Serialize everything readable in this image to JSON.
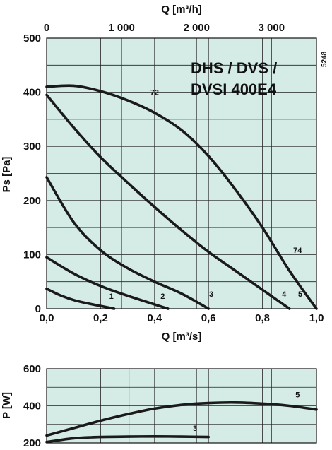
{
  "chart_data": [
    {
      "type": "line",
      "title": "DHS / DVS / DVSI 400E4",
      "title_lines": [
        "DHS / DVS /",
        "DVSI 400E4"
      ],
      "code": "5248",
      "xlabel": "Q [m³/s]",
      "ylabel": "Ps [Pa]",
      "top_axis_label": "Q [m³/h]",
      "xlim": [
        0,
        1.0
      ],
      "ylim": [
        0,
        500
      ],
      "top_axis_lim": [
        0,
        3600
      ],
      "xticks": [
        0,
        0.2,
        0.4,
        0.6,
        0.8,
        1.0
      ],
      "xtick_labels": [
        "0,0",
        "0,2",
        "0,4",
        "0,6",
        "0,8",
        "1,0"
      ],
      "yticks": [
        0,
        100,
        200,
        300,
        400,
        500
      ],
      "ytick_labels": [
        "0",
        "100",
        "200",
        "300",
        "400",
        "500"
      ],
      "top_ticks": [
        0,
        1000,
        2000,
        3000
      ],
      "top_tick_labels": [
        "0",
        "1 000",
        "2 000",
        "3 000"
      ],
      "grid": true,
      "background": "#d5ebe6",
      "curve_color": "#1a1a1a",
      "series": [
        {
          "name": "1",
          "x": [
            0,
            0.05,
            0.1,
            0.15,
            0.2,
            0.25
          ],
          "y": [
            37,
            25,
            16,
            10,
            5,
            0
          ]
        },
        {
          "name": "2",
          "x": [
            0,
            0.1,
            0.2,
            0.3,
            0.4,
            0.45
          ],
          "y": [
            95,
            65,
            42,
            24,
            8,
            0
          ]
        },
        {
          "name": "3",
          "x": [
            0,
            0.1,
            0.2,
            0.3,
            0.4,
            0.5,
            0.6
          ],
          "y": [
            243,
            160,
            108,
            75,
            50,
            28,
            0
          ]
        },
        {
          "name": "4",
          "x": [
            0,
            0.1,
            0.2,
            0.3,
            0.4,
            0.5,
            0.6,
            0.7,
            0.8,
            0.9
          ],
          "y": [
            395,
            335,
            280,
            233,
            188,
            145,
            105,
            70,
            35,
            0
          ]
        },
        {
          "name": "5",
          "x": [
            0,
            0.1,
            0.2,
            0.3,
            0.4,
            0.5,
            0.6,
            0.7,
            0.8,
            0.9,
            1.0
          ],
          "y": [
            410,
            412,
            402,
            385,
            362,
            330,
            282,
            220,
            150,
            70,
            0
          ]
        }
      ],
      "annotations": [
        {
          "text": "1",
          "x": 0.24,
          "y": 18
        },
        {
          "text": "2",
          "x": 0.43,
          "y": 18
        },
        {
          "text": "3",
          "x": 0.61,
          "y": 22
        },
        {
          "text": "4",
          "x": 0.88,
          "y": 22
        },
        {
          "text": "5",
          "x": 0.94,
          "y": 22
        },
        {
          "text": "72",
          "x": 0.4,
          "y": 395
        },
        {
          "text": "74",
          "x": 0.93,
          "y": 103
        }
      ]
    },
    {
      "type": "line",
      "ylabel": "P [W]",
      "xlim": [
        0,
        1.0
      ],
      "ylim": [
        200,
        600
      ],
      "yticks": [
        200,
        400,
        600
      ],
      "ytick_labels": [
        "200",
        "400",
        "600"
      ],
      "grid": true,
      "background": "#d5ebe6",
      "curve_color": "#1a1a1a",
      "series": [
        {
          "name": "3",
          "x": [
            0,
            0.1,
            0.2,
            0.3,
            0.4,
            0.5,
            0.6
          ],
          "y": [
            205,
            225,
            232,
            234,
            235,
            234,
            232
          ]
        },
        {
          "name": "5",
          "x": [
            0,
            0.1,
            0.2,
            0.3,
            0.4,
            0.5,
            0.6,
            0.7,
            0.8,
            0.9,
            1.0
          ],
          "y": [
            240,
            280,
            320,
            355,
            385,
            405,
            415,
            418,
            412,
            400,
            380
          ]
        }
      ],
      "annotations": [
        {
          "text": "3",
          "x": 0.55,
          "y": 265
        },
        {
          "text": "5",
          "x": 0.93,
          "y": 445
        }
      ]
    }
  ]
}
